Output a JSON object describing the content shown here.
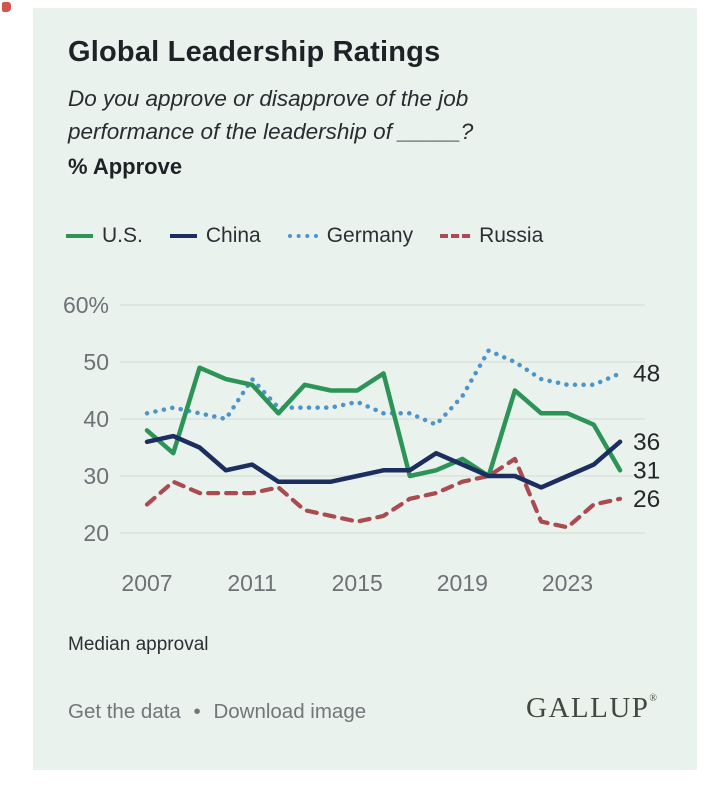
{
  "header": {
    "title": "Global Leadership Ratings",
    "subtitle": "Do you approve or disapprove of the job performance of the leadership of _____?",
    "measure_label": "% Approve"
  },
  "legend": [
    {
      "label": "U.S.",
      "color": "#2d9457",
      "style": "solid"
    },
    {
      "label": "China",
      "color": "#1b2e5f",
      "style": "solid"
    },
    {
      "label": "Germany",
      "color": "#4f94c9",
      "style": "dotted"
    },
    {
      "label": "Russia",
      "color": "#aa4b50",
      "style": "dashed"
    }
  ],
  "chart_data": {
    "type": "line",
    "x": [
      2007,
      2008,
      2009,
      2010,
      2011,
      2012,
      2013,
      2014,
      2015,
      2016,
      2017,
      2018,
      2019,
      2020,
      2021,
      2022,
      2023,
      2024,
      2025
    ],
    "series": [
      {
        "name": "Russia",
        "color": "#aa4b50",
        "style": "dashed",
        "values": [
          25,
          29,
          27,
          27,
          27,
          28,
          24,
          23,
          22,
          23,
          26,
          27,
          29,
          30,
          33,
          22,
          21,
          25,
          26
        ],
        "end_label": "26"
      },
      {
        "name": "Germany",
        "color": "#4f94c9",
        "style": "dotted",
        "values": [
          41,
          42,
          41,
          40,
          47,
          42,
          42,
          42,
          43,
          41,
          41,
          39,
          44,
          52,
          50,
          47,
          46,
          46,
          48
        ],
        "end_label": "48"
      },
      {
        "name": "U.S.",
        "color": "#2d9457",
        "style": "solid",
        "values": [
          38,
          34,
          49,
          47,
          46,
          41,
          46,
          45,
          45,
          48,
          30,
          31,
          33,
          30,
          45,
          41,
          41,
          39,
          31
        ],
        "end_label": "31"
      },
      {
        "name": "China",
        "color": "#1b2e5f",
        "style": "solid",
        "values": [
          36,
          37,
          35,
          31,
          32,
          29,
          29,
          29,
          30,
          31,
          31,
          34,
          32,
          30,
          30,
          28,
          30,
          32,
          36
        ],
        "end_label": "36"
      }
    ],
    "y_ticks": [
      {
        "value": 60,
        "label": "60%"
      },
      {
        "value": 50,
        "label": "50"
      },
      {
        "value": 40,
        "label": "40"
      },
      {
        "value": 30,
        "label": "30"
      },
      {
        "value": 20,
        "label": "20"
      }
    ],
    "x_ticks": [
      {
        "value": 2007,
        "label": "2007"
      },
      {
        "value": 2011,
        "label": "2011"
      },
      {
        "value": 2015,
        "label": "2015"
      },
      {
        "value": 2019,
        "label": "2019"
      },
      {
        "value": 2023,
        "label": "2023"
      }
    ],
    "ylim": [
      17,
      62
    ],
    "xlim": [
      2007,
      2025
    ],
    "grid": true,
    "legend_position": "top",
    "title": "Global Leadership Ratings",
    "ylabel": "% Approve"
  },
  "footer": {
    "note": "Median approval",
    "link1": "Get the data",
    "separator": "•",
    "link2": "Download image",
    "brand": "GALLUP",
    "brand_mark": "®"
  },
  "colors": {
    "card_background": "#e9f2ec",
    "grid_line": "#d8dfd8",
    "axis_text": "#6d7276",
    "end_label_text": "#24292c"
  }
}
